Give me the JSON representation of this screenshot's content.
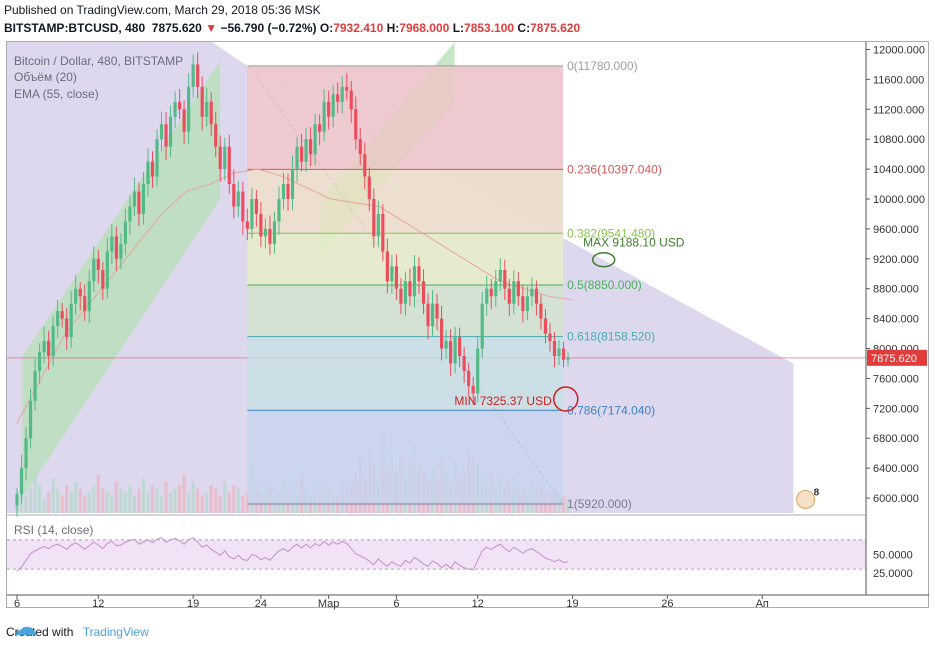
{
  "header": {
    "published": "Published on TradingView.com, March 29, 2018 05:36 MSK",
    "symbol": "BITSTAMP:BTCUSD, 480",
    "last": "7875.620",
    "change_arrow": "▼",
    "change": "−56.790 (−0.72%)",
    "o_label": "O:",
    "o": "7932.410",
    "h_label": "H:",
    "h": "7968.000",
    "l_label": "L:",
    "l": "7853.100",
    "c_label": "C:",
    "c": "7875.620"
  },
  "legend": {
    "title": "Bitcoin / Dollar, 480, BITSTAMP",
    "volume": "Объём (20)",
    "ema": "EMA (55, close)",
    "rsi": "RSI (14, close)"
  },
  "price_label": "7875.620",
  "fib_labels": [
    "0(11780.000)",
    "0.236(10397.040)",
    "0.382(9541.480)",
    "0.5(8850.000)",
    "0.618(8158.520)",
    "0.786(7174.040)",
    "1(5920.000)"
  ],
  "annotations": {
    "max": "MAX 9188.10 USD",
    "min": "MIN 7325.37 USD"
  },
  "badge": "8",
  "footer": {
    "created_with": "Created with",
    "brand": "TradingView"
  },
  "colors": {
    "up": "#53b987",
    "down": "#eb4d5c",
    "accent": "#e03c3c",
    "rsi": "#c390c8",
    "ema": "#e8a29c"
  },
  "chart_data": {
    "type": "candlestick",
    "y_axis": {
      "range": [
        5800,
        12100
      ],
      "ticks": [
        6000,
        6400,
        6800,
        7200,
        7600,
        8000,
        8400,
        8800,
        9200,
        9600,
        10000,
        10400,
        10800,
        11200,
        11600,
        12000
      ],
      "tick_labels": [
        "6000.000",
        "6400.000",
        "6800.000",
        "7200.000",
        "7600.000",
        "8000.000",
        "8400.000",
        "8800.000",
        "9200.000",
        "9600.000",
        "10000.000",
        "10400.000",
        "10800.000",
        "11200.000",
        "11600.000",
        "12000.000"
      ]
    },
    "x_axis": {
      "tick_labels": [
        "6",
        "12",
        "19",
        "24",
        "Мар",
        "6",
        "12",
        "19",
        "26",
        "Ап"
      ],
      "tick_days": [
        0,
        6,
        13,
        18,
        23,
        28,
        34,
        41,
        48,
        55
      ]
    },
    "candles": {
      "first_day": 0,
      "per_day": 3,
      "close": [
        6050,
        6400,
        6800,
        7300,
        7700,
        7950,
        8100,
        7900,
        8300,
        8500,
        8400,
        8150,
        8600,
        8800,
        8700,
        8500,
        8900,
        9200,
        9050,
        8800,
        9300,
        9500,
        9200,
        9400,
        9700,
        9900,
        10100,
        9800,
        10200,
        10500,
        10300,
        10800,
        11000,
        10700,
        11100,
        11300,
        11200,
        10900,
        11500,
        11800,
        11500,
        11100,
        11300,
        11000,
        10700,
        10400,
        10700,
        10200,
        9900,
        10100,
        9700,
        9600,
        10000,
        9800,
        9500,
        9600,
        9400,
        9700,
        10000,
        10200,
        10000,
        10400,
        10700,
        10500,
        10800,
        10600,
        11000,
        10900,
        11300,
        11100,
        11400,
        11300,
        11500,
        11450,
        11200,
        10800,
        10600,
        10300,
        10000,
        9500,
        9800,
        9300,
        8900,
        9100,
        8800,
        8600,
        8900,
        8700,
        9100,
        8900,
        8600,
        8300,
        8600,
        8400,
        8000,
        8100,
        7800,
        8150,
        7900,
        7700,
        7500,
        7400,
        8000,
        8600,
        8800,
        8700,
        8900,
        9050,
        8800,
        8600,
        8900,
        8700,
        8500,
        8700,
        8800,
        8600,
        8400,
        8200,
        8100,
        7900,
        8000,
        7850,
        7880
      ],
      "high_extra": [
        80,
        180,
        150,
        160,
        170,
        120,
        190,
        140,
        130,
        150,
        110,
        140,
        170,
        180,
        90,
        160,
        150,
        170,
        120,
        110,
        180,
        160,
        130,
        140,
        170,
        150,
        190,
        120,
        160,
        180,
        140,
        130,
        170,
        160,
        150,
        140,
        170,
        120,
        180,
        130,
        160,
        140,
        180,
        130,
        170,
        150,
        120,
        160,
        190,
        140,
        130,
        170,
        150,
        120,
        160,
        140,
        180,
        130,
        170,
        150,
        140,
        180,
        130,
        170,
        150,
        160,
        140,
        130,
        170,
        150,
        120,
        160,
        140,
        180,
        130,
        170,
        150,
        160,
        120,
        140,
        180,
        130,
        170,
        150,
        160,
        140,
        130,
        170,
        150,
        120,
        160,
        140,
        180,
        130,
        170,
        150,
        160,
        140,
        130,
        120,
        110,
        120,
        150,
        160,
        170,
        130,
        150,
        160,
        140,
        130,
        150,
        120,
        140,
        130,
        150,
        110,
        120,
        130,
        140,
        120,
        110,
        90,
        80
      ],
      "low_extra": [
        150,
        120,
        160,
        140,
        130,
        170,
        150,
        180,
        140,
        160,
        120,
        170,
        140,
        150,
        190,
        130,
        160,
        140,
        180,
        150,
        130,
        170,
        160,
        140,
        150,
        180,
        130,
        160,
        140,
        170,
        150,
        130,
        160,
        180,
        140,
        150,
        130,
        170,
        160,
        140,
        150,
        180,
        130,
        160,
        140,
        170,
        150,
        130,
        160,
        140,
        180,
        150,
        130,
        170,
        140,
        160,
        150,
        130,
        180,
        140,
        160,
        150,
        170,
        130,
        140,
        160,
        150,
        180,
        130,
        170,
        140,
        150,
        160,
        130,
        180,
        140,
        150,
        170,
        160,
        150,
        140,
        130,
        160,
        170,
        150,
        140,
        160,
        130,
        150,
        170,
        140,
        180,
        130,
        150,
        160,
        140,
        170,
        130,
        150,
        160,
        140,
        150,
        120,
        130,
        160,
        170,
        140,
        130,
        150,
        160,
        140,
        130,
        150,
        120,
        140,
        160,
        150,
        130,
        140,
        150,
        120,
        100,
        90
      ]
    },
    "ema55": [
      7000,
      7600,
      8200,
      8600,
      9000,
      9400,
      9800,
      10100,
      10200,
      10350,
      10400,
      10300,
      10150,
      10000,
      9950,
      9900,
      9700,
      9500,
      9300,
      9100,
      8900,
      8800,
      8700,
      8650
    ],
    "volume": [
      60,
      90,
      50,
      70,
      120,
      80,
      40,
      60,
      100,
      70,
      50,
      80,
      60,
      90,
      70,
      50,
      60,
      80,
      110,
      70,
      60,
      50,
      90,
      70,
      60,
      80,
      50,
      70,
      100,
      60,
      80,
      70,
      50,
      90,
      60,
      70,
      80,
      110,
      60,
      90,
      70,
      50,
      60,
      80,
      70,
      50,
      90,
      60,
      80,
      70,
      50,
      60,
      140,
      90,
      60,
      70,
      80,
      50,
      60,
      90,
      70,
      80,
      60,
      110,
      70,
      50,
      90,
      60,
      80,
      70,
      60,
      50,
      90,
      70,
      80,
      120,
      160,
      100,
      180,
      140,
      90,
      230,
      130,
      170,
      120,
      160,
      110,
      150,
      200,
      140,
      120,
      90,
      130,
      100,
      160,
      120,
      90,
      150,
      110,
      120,
      180,
      160,
      140,
      110,
      90,
      120,
      80,
      100,
      70,
      90,
      110,
      80,
      70,
      60,
      90,
      70,
      80,
      60,
      50,
      70,
      60,
      50,
      40
    ],
    "rsi": [
      27,
      33,
      42,
      51,
      55,
      58,
      61,
      58,
      62,
      64,
      61,
      57,
      63,
      66,
      62,
      57,
      62,
      67,
      63,
      58,
      65,
      68,
      62,
      63,
      67,
      69,
      71,
      64,
      67,
      70,
      66,
      71,
      73,
      67,
      70,
      72,
      69,
      64,
      70,
      73,
      67,
      60,
      63,
      57,
      53,
      49,
      55,
      47,
      44,
      49,
      43,
      42,
      50,
      48,
      43,
      46,
      42,
      49,
      55,
      58,
      54,
      60,
      64,
      59,
      64,
      59,
      65,
      62,
      68,
      63,
      67,
      64,
      68,
      65,
      58,
      51,
      48,
      45,
      41,
      36,
      44,
      38,
      34,
      40,
      36,
      34,
      42,
      38,
      46,
      42,
      37,
      34,
      41,
      38,
      32,
      37,
      31,
      40,
      35,
      32,
      30,
      29,
      42,
      55,
      60,
      57,
      61,
      64,
      58,
      54,
      60,
      56,
      52,
      56,
      58,
      54,
      50,
      45,
      43,
      40,
      43,
      39,
      40
    ],
    "rsi_axis": {
      "tick_labels": [
        "25.0000",
        "50.0000"
      ],
      "ticks": [
        25,
        50
      ],
      "band": [
        30,
        70
      ]
    },
    "fibonacci": {
      "levels": [
        0,
        0.236,
        0.382,
        0.5,
        0.618,
        0.786,
        1
      ],
      "prices": [
        11780,
        10397.04,
        9541.48,
        8850,
        8158.52,
        7174.04,
        5920
      ]
    }
  }
}
